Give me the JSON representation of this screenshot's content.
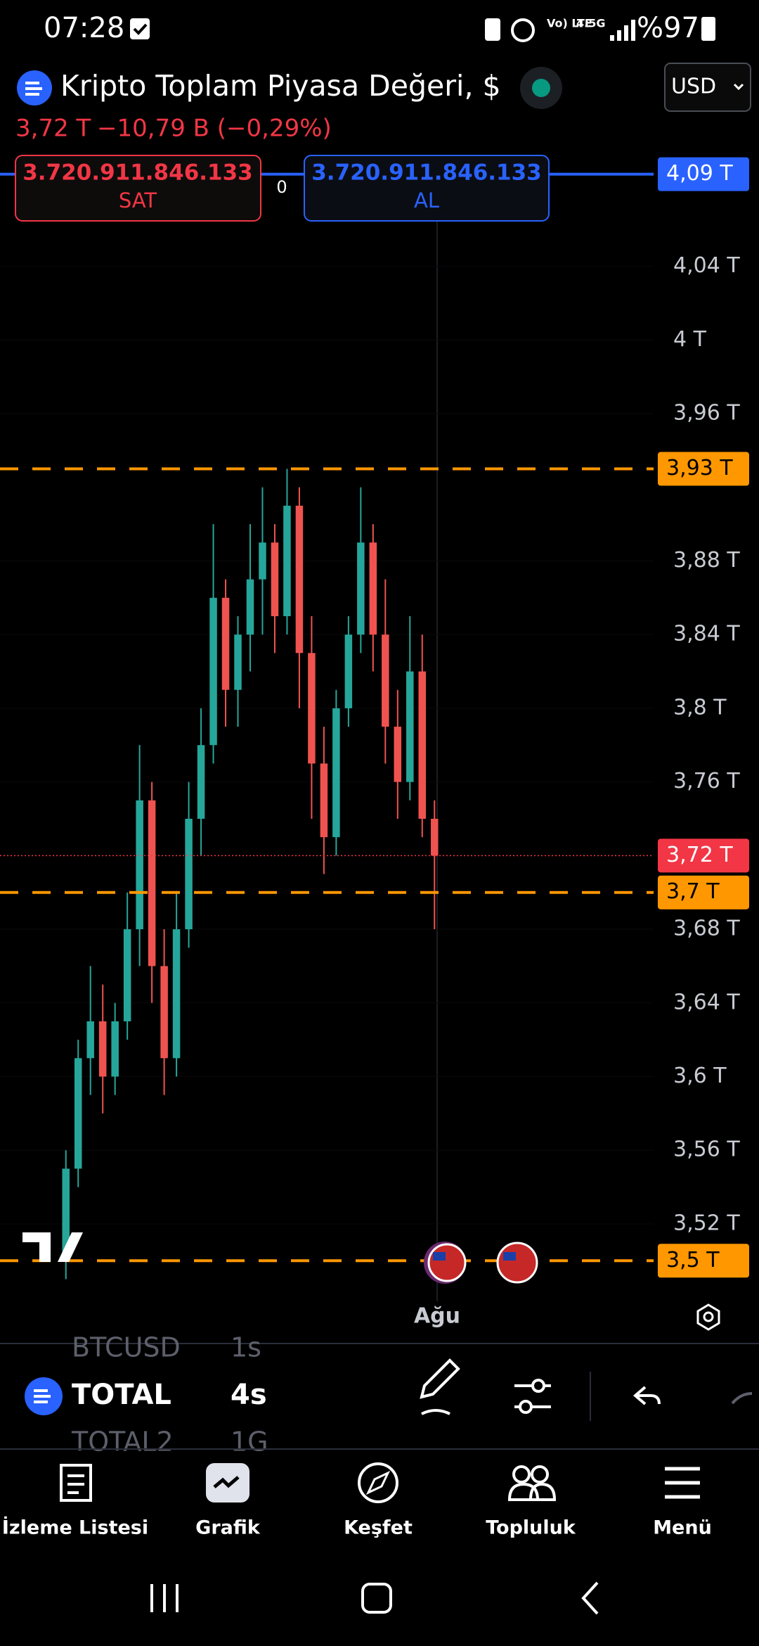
{
  "status_bar": {
    "time": "07:28",
    "network": "4.5G",
    "volte": "Vo) LTE",
    "battery": "%97"
  },
  "header": {
    "title": "Kripto Toplam Piyasa Değeri, $",
    "currency": "USD",
    "quote": "3,72 T",
    "change": "−10,79 B (−0,29%)"
  },
  "trade": {
    "sell_price": "3.720.911.846.133",
    "sell_label": "SAT",
    "spread": "0",
    "buy_price": "3.720.911.846.133",
    "buy_label": "AL"
  },
  "chart": {
    "type": "candlestick",
    "up_color": "#26a69a",
    "down_color": "#ef5350",
    "ylim": [
      3.47,
      4.13
    ],
    "yticks": [
      {
        "value": 4.04,
        "label": "4,04 T"
      },
      {
        "value": 4,
        "label": "4 T"
      },
      {
        "value": 3.96,
        "label": "3,96 T"
      },
      {
        "value": 3.88,
        "label": "3,88 T"
      },
      {
        "value": 3.84,
        "label": "3,84 T"
      },
      {
        "value": 3.8,
        "label": "3,8 T"
      },
      {
        "value": 3.76,
        "label": "3,76 T"
      },
      {
        "value": 3.68,
        "label": "3,68 T"
      },
      {
        "value": 3.64,
        "label": "3,64 T"
      },
      {
        "value": 3.6,
        "label": "3,6 T"
      },
      {
        "value": 3.56,
        "label": "3,56 T"
      },
      {
        "value": 3.52,
        "label": "3,52 T"
      }
    ],
    "levels": [
      {
        "value": 4.09,
        "label": "4,09 T",
        "color": "#2962ff",
        "line": "solid"
      },
      {
        "value": 3.93,
        "label": "3,93 T",
        "color": "#ff9800",
        "line": "dashed"
      },
      {
        "value": 3.72,
        "label": "3,72 T",
        "color": "#f23645",
        "line": "dotted"
      },
      {
        "value": 3.7,
        "label": "3,7 T",
        "color": "#ff9800",
        "line": "dashed"
      },
      {
        "value": 3.5,
        "label": "3,5 T",
        "color": "#ff9800",
        "line": "dashed"
      }
    ],
    "x_label": "Ağu",
    "candles": [
      {
        "open": 3.5,
        "high": 3.56,
        "low": 3.49,
        "close": 3.55
      },
      {
        "open": 3.55,
        "high": 3.62,
        "low": 3.54,
        "close": 3.61
      },
      {
        "open": 3.61,
        "high": 3.66,
        "low": 3.59,
        "close": 3.63
      },
      {
        "open": 3.63,
        "high": 3.65,
        "low": 3.58,
        "close": 3.6
      },
      {
        "open": 3.6,
        "high": 3.64,
        "low": 3.59,
        "close": 3.63
      },
      {
        "open": 3.63,
        "high": 3.7,
        "low": 3.62,
        "close": 3.68
      },
      {
        "open": 3.68,
        "high": 3.78,
        "low": 3.66,
        "close": 3.75
      },
      {
        "open": 3.75,
        "high": 3.76,
        "low": 3.64,
        "close": 3.66
      },
      {
        "open": 3.66,
        "high": 3.68,
        "low": 3.59,
        "close": 3.61
      },
      {
        "open": 3.61,
        "high": 3.7,
        "low": 3.6,
        "close": 3.68
      },
      {
        "open": 3.68,
        "high": 3.76,
        "low": 3.67,
        "close": 3.74
      },
      {
        "open": 3.74,
        "high": 3.8,
        "low": 3.72,
        "close": 3.78
      },
      {
        "open": 3.78,
        "high": 3.9,
        "low": 3.77,
        "close": 3.86
      },
      {
        "open": 3.86,
        "high": 3.87,
        "low": 3.79,
        "close": 3.81
      },
      {
        "open": 3.81,
        "high": 3.85,
        "low": 3.79,
        "close": 3.84
      },
      {
        "open": 3.84,
        "high": 3.9,
        "low": 3.82,
        "close": 3.87
      },
      {
        "open": 3.87,
        "high": 3.92,
        "low": 3.84,
        "close": 3.89
      },
      {
        "open": 3.89,
        "high": 3.9,
        "low": 3.83,
        "close": 3.85
      },
      {
        "open": 3.85,
        "high": 3.93,
        "low": 3.84,
        "close": 3.91
      },
      {
        "open": 3.91,
        "high": 3.92,
        "low": 3.8,
        "close": 3.83
      },
      {
        "open": 3.83,
        "high": 3.85,
        "low": 3.74,
        "close": 3.77
      },
      {
        "open": 3.77,
        "high": 3.79,
        "low": 3.71,
        "close": 3.73
      },
      {
        "open": 3.73,
        "high": 3.81,
        "low": 3.72,
        "close": 3.8
      },
      {
        "open": 3.8,
        "high": 3.85,
        "low": 3.79,
        "close": 3.84
      },
      {
        "open": 3.84,
        "high": 3.92,
        "low": 3.83,
        "close": 3.89
      },
      {
        "open": 3.89,
        "high": 3.9,
        "low": 3.82,
        "close": 3.84
      },
      {
        "open": 3.84,
        "high": 3.87,
        "low": 3.77,
        "close": 3.79
      },
      {
        "open": 3.79,
        "high": 3.81,
        "low": 3.74,
        "close": 3.76
      },
      {
        "open": 3.76,
        "high": 3.85,
        "low": 3.75,
        "close": 3.82
      },
      {
        "open": 3.82,
        "high": 3.84,
        "low": 3.73,
        "close": 3.74
      },
      {
        "open": 3.74,
        "high": 3.75,
        "low": 3.68,
        "close": 3.72
      }
    ]
  },
  "toolbar": {
    "symbol_above": "BTCUSD",
    "interval_above": "1s",
    "symbol": "TOTAL",
    "interval": "4s",
    "symbol_below": "TOTAL2",
    "interval_below": "1G"
  },
  "nav": {
    "items": [
      "İzleme Listesi",
      "Grafik",
      "Keşfet",
      "Topluluk",
      "Menü"
    ]
  }
}
